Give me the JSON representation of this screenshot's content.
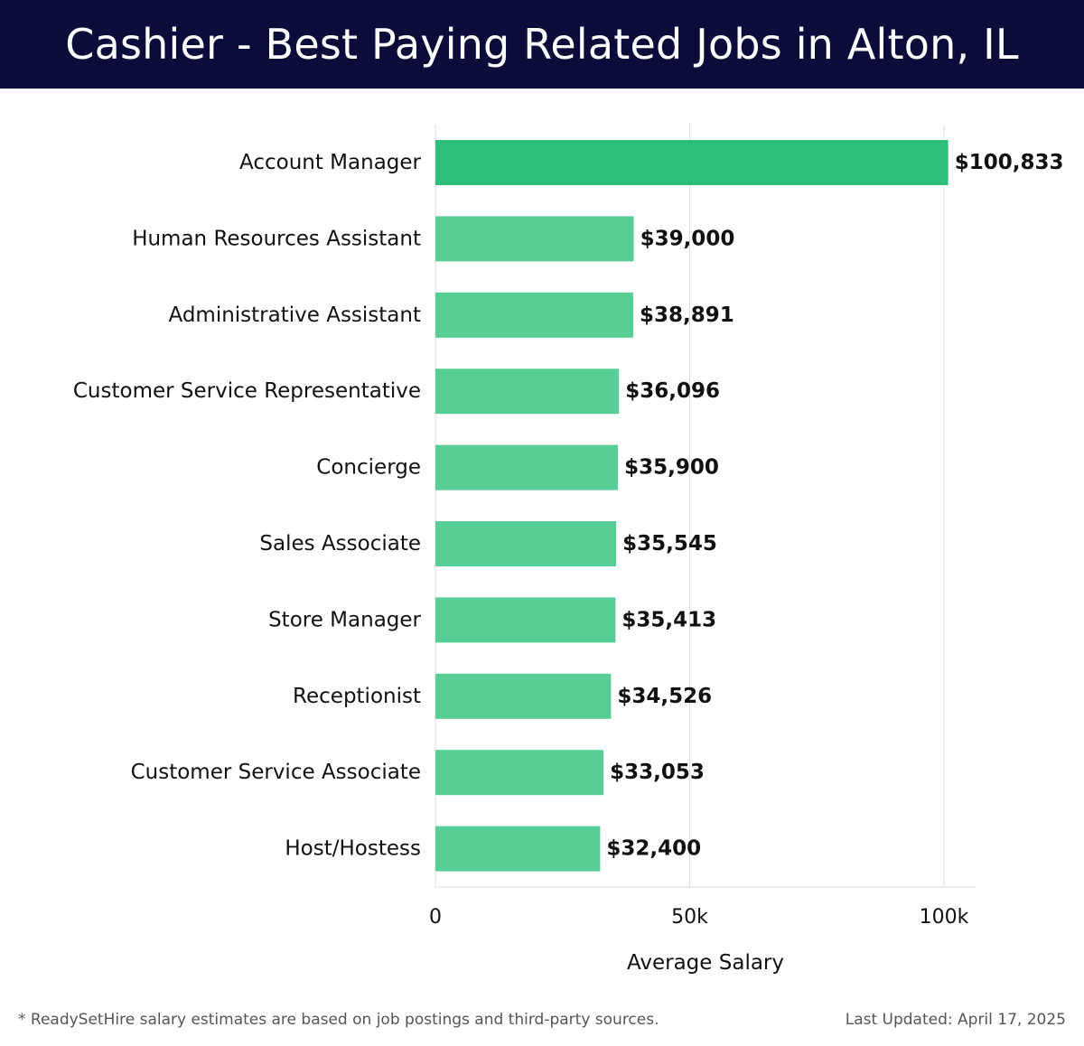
{
  "header": {
    "title": "Cashier - Best Paying Related Jobs in Alton, IL"
  },
  "chart_data": {
    "type": "bar",
    "orientation": "horizontal",
    "categories": [
      "Account Manager",
      "Human Resources Assistant",
      "Administrative Assistant",
      "Customer Service Representative",
      "Concierge",
      "Sales Associate",
      "Store Manager",
      "Receptionist",
      "Customer Service Associate",
      "Host/Hostess"
    ],
    "values": [
      100833,
      39000,
      38891,
      36096,
      35900,
      35545,
      35413,
      34526,
      33053,
      32400
    ],
    "data_labels": [
      "$100,833",
      "$39,000",
      "$38,891",
      "$36,096",
      "$35,900",
      "$35,545",
      "$35,413",
      "$34,526",
      "$33,053",
      "$32,400"
    ],
    "xlabel": "Average Salary",
    "xlim": [
      0,
      106000
    ],
    "x_ticks": [
      0,
      50000,
      100000
    ],
    "x_tick_labels": [
      "0",
      "50k",
      "100k"
    ],
    "grid": "vertical",
    "colors": {
      "highlight": "#2ebf7a",
      "bar": "#57ce96",
      "grid": "#dddddd"
    }
  },
  "footer": {
    "note": "* ReadySetHire salary estimates are based on job postings and third-party sources.",
    "updated": "Last Updated: April 17, 2025"
  }
}
